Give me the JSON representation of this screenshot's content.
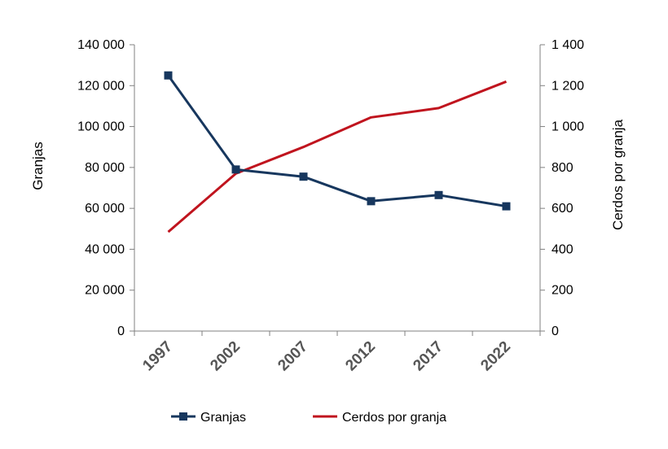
{
  "chart_data": {
    "type": "line",
    "categories": [
      "1997",
      "2002",
      "2007",
      "2012",
      "2017",
      "2022"
    ],
    "series": [
      {
        "name": "Granjas",
        "axis": "left",
        "color": "#17375e",
        "marker": "square",
        "values": [
          125000,
          79000,
          75500,
          63500,
          66500,
          61000
        ]
      },
      {
        "name": "Cerdos por granja",
        "axis": "right",
        "color": "#c0141e",
        "marker": "none",
        "values": [
          485,
          770,
          900,
          1045,
          1090,
          1220
        ]
      }
    ],
    "left_axis": {
      "label": "Granjas",
      "ylim": [
        0,
        140000
      ],
      "ticks": [
        0,
        20000,
        40000,
        60000,
        80000,
        100000,
        120000,
        140000
      ],
      "tick_labels": [
        "0",
        "20 000",
        "40 000",
        "60 000",
        "80 000",
        "100 000",
        "120 000",
        "140 000"
      ]
    },
    "right_axis": {
      "label": "Cerdos por granja",
      "ylim": [
        0,
        1400
      ],
      "ticks": [
        0,
        200,
        400,
        600,
        800,
        1000,
        1200,
        1400
      ],
      "tick_labels": [
        "0",
        "200",
        "400",
        "600",
        "800",
        "1 000",
        "1 200",
        "1 400"
      ]
    },
    "grid": false,
    "legend": "bottom"
  }
}
